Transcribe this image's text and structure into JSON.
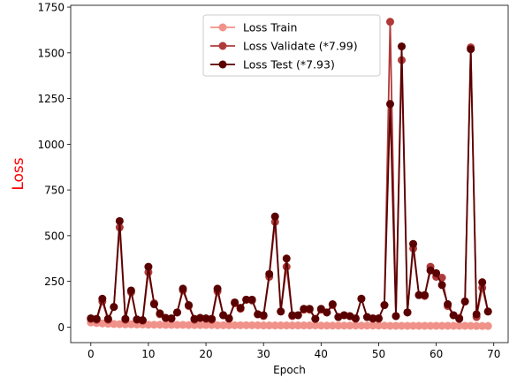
{
  "chart_data": {
    "type": "line",
    "xlabel": "Epoch",
    "ylabel": "Loss",
    "ylabel_color": "#ff0000",
    "xlim": [
      -3.5,
      72.5
    ],
    "ylim": [
      -85,
      1760
    ],
    "xticks": [
      0,
      10,
      20,
      30,
      40,
      50,
      60,
      70
    ],
    "yticks": [
      0,
      250,
      500,
      750,
      1000,
      1250,
      1500,
      1750
    ],
    "grid": false,
    "legend_position": "top-center",
    "series": [
      {
        "name": "Loss Train",
        "color": "#f0928a",
        "marker": "circle",
        "values": [
          25,
          22,
          20,
          18,
          17,
          16,
          15,
          15,
          14,
          14,
          13,
          13,
          13,
          12,
          12,
          12,
          12,
          11,
          11,
          11,
          11,
          11,
          10,
          10,
          10,
          10,
          10,
          10,
          10,
          10,
          9,
          9,
          9,
          9,
          9,
          9,
          9,
          9,
          9,
          9,
          8,
          8,
          8,
          8,
          8,
          8,
          8,
          8,
          8,
          8,
          8,
          8,
          7,
          7,
          7,
          7,
          7,
          7,
          7,
          7,
          7,
          7,
          7,
          7,
          7,
          7,
          7,
          6,
          6,
          6
        ]
      },
      {
        "name": "Loss Validate (*7.99)",
        "color": "#b03a3a",
        "marker": "circle",
        "values": [
          45,
          40,
          140,
          40,
          110,
          545,
          40,
          190,
          40,
          35,
          300,
          130,
          70,
          50,
          45,
          80,
          200,
          115,
          40,
          50,
          45,
          40,
          195,
          65,
          45,
          130,
          100,
          150,
          145,
          70,
          60,
          275,
          575,
          85,
          330,
          60,
          65,
          95,
          95,
          45,
          95,
          80,
          120,
          55,
          65,
          60,
          45,
          155,
          55,
          45,
          45,
          120,
          1670,
          60,
          1460,
          80,
          430,
          175,
          170,
          330,
          275,
          270,
          115,
          65,
          50,
          140,
          1530,
          55,
          215,
          85
        ]
      },
      {
        "name": "Loss Test (*7.93)",
        "color": "#5a0000",
        "marker": "circle",
        "values": [
          48,
          45,
          155,
          45,
          110,
          580,
          45,
          200,
          42,
          38,
          330,
          125,
          75,
          50,
          48,
          80,
          210,
          120,
          45,
          50,
          48,
          45,
          210,
          65,
          48,
          135,
          105,
          150,
          150,
          70,
          65,
          290,
          605,
          85,
          375,
          65,
          65,
          100,
          100,
          45,
          100,
          80,
          125,
          55,
          65,
          60,
          48,
          155,
          55,
          48,
          48,
          120,
          1220,
          60,
          1535,
          80,
          455,
          175,
          175,
          310,
          295,
          230,
          125,
          65,
          45,
          140,
          1520,
          70,
          245,
          85
        ]
      }
    ]
  }
}
